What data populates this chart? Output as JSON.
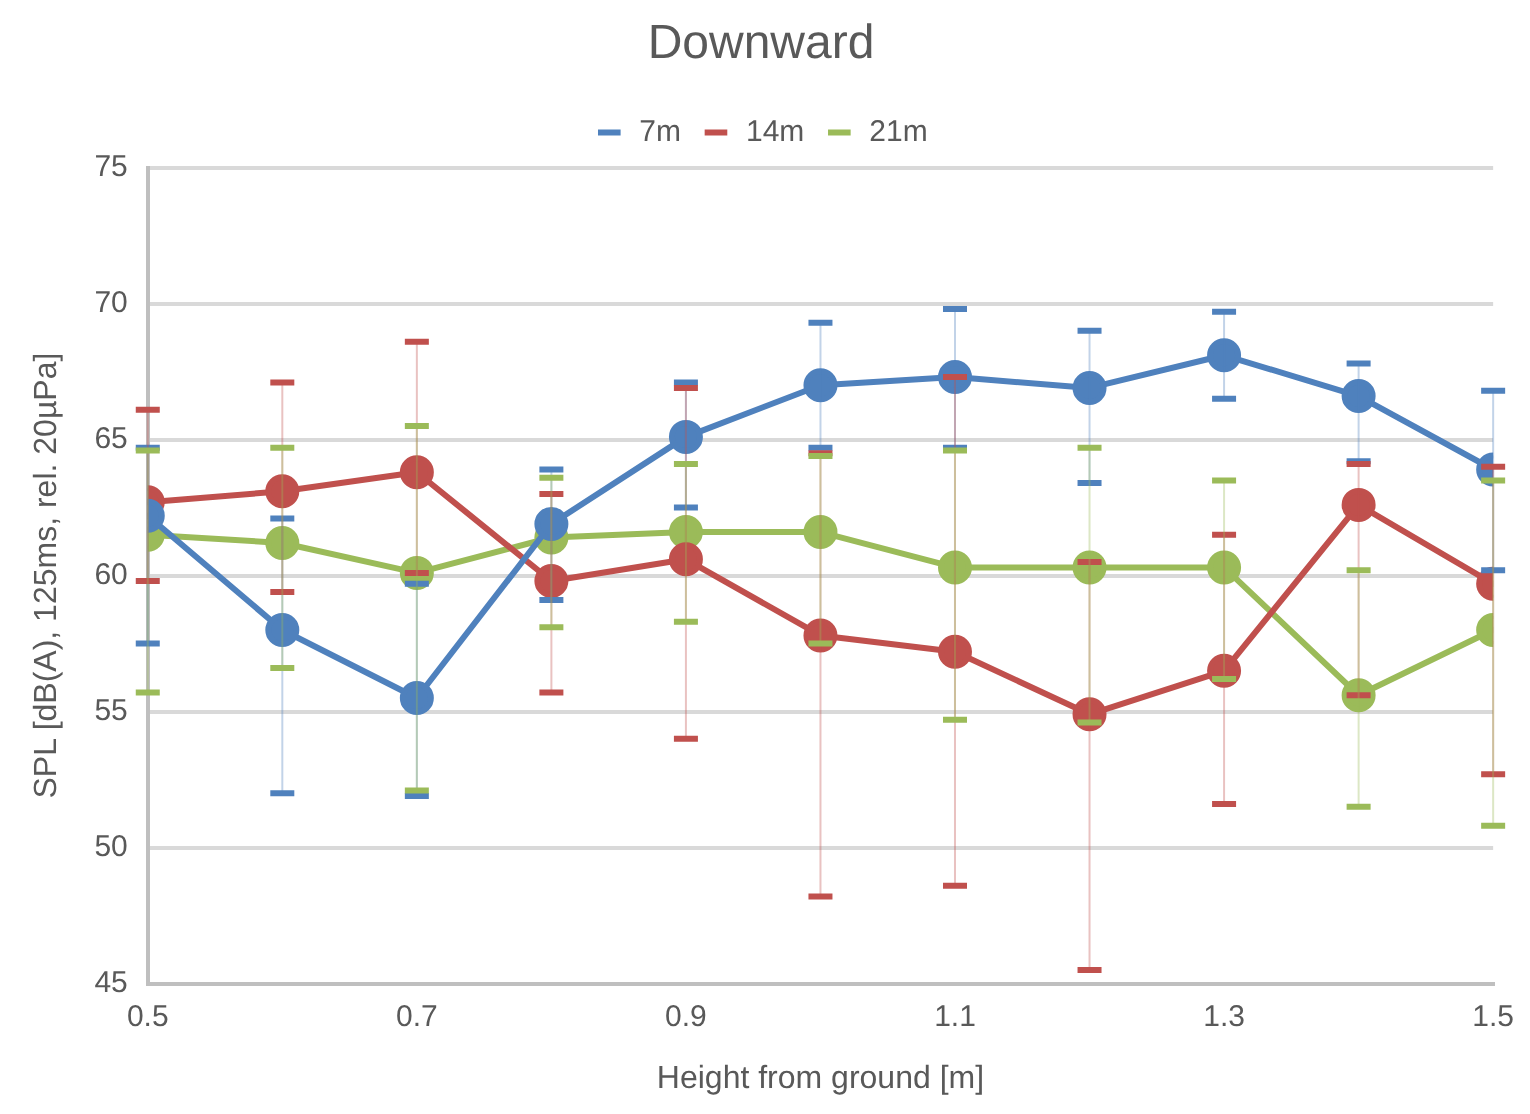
{
  "chart_data": {
    "type": "line",
    "title": "Downward",
    "xlabel": "Height from ground [m]",
    "ylabel": "SPL [dB(A), 125ms, rel. 20µPa]",
    "x": [
      0.5,
      0.6,
      0.7,
      0.8,
      0.9,
      1.0,
      1.1,
      1.2,
      1.3,
      1.4,
      1.5
    ],
    "xlim": [
      0.5,
      1.5
    ],
    "xticks": [
      0.5,
      0.7,
      0.9,
      1.1,
      1.3,
      1.5
    ],
    "ylim": [
      45,
      75
    ],
    "yticks": [
      45,
      50,
      55,
      60,
      65,
      70,
      75
    ],
    "grid": "y",
    "legend": "top",
    "marker": "circle",
    "line_style": "solid",
    "series": [
      {
        "name": "7m",
        "color": "#4f81bd",
        "values": [
          62.2,
          58.0,
          55.5,
          61.9,
          65.1,
          67.0,
          67.3,
          66.9,
          68.1,
          66.6,
          63.9
        ],
        "errors": [
          [
            57.5,
            64.7
          ],
          [
            52.0,
            62.1
          ],
          [
            51.9,
            59.7
          ],
          [
            59.1,
            63.9
          ],
          [
            62.5,
            67.1
          ],
          [
            64.7,
            69.3
          ],
          [
            64.7,
            69.8
          ],
          [
            63.4,
            69.0
          ],
          [
            66.5,
            69.7
          ],
          [
            64.2,
            67.8
          ],
          [
            60.2,
            66.8
          ]
        ]
      },
      {
        "name": "14m",
        "color": "#c0504d",
        "values": [
          62.7,
          63.1,
          63.8,
          59.8,
          60.6,
          57.8,
          57.2,
          54.9,
          56.5,
          62.6,
          59.7
        ],
        "errors": [
          [
            59.8,
            66.1
          ],
          [
            59.4,
            67.1
          ],
          [
            60.1,
            68.6
          ],
          [
            55.7,
            63.0
          ],
          [
            54.0,
            66.9
          ],
          [
            48.2,
            64.5
          ],
          [
            48.6,
            67.3
          ],
          [
            45.5,
            60.5
          ],
          [
            51.6,
            61.5
          ],
          [
            55.6,
            64.1
          ],
          [
            52.7,
            64.0
          ]
        ]
      },
      {
        "name": "21m",
        "color": "#9bbb59",
        "values": [
          61.5,
          61.2,
          60.1,
          61.4,
          61.6,
          61.6,
          60.3,
          60.3,
          60.3,
          55.6,
          58.0
        ],
        "errors": [
          [
            55.7,
            64.6
          ],
          [
            56.6,
            64.7
          ],
          [
            52.1,
            65.5
          ],
          [
            58.1,
            63.6
          ],
          [
            58.3,
            64.1
          ],
          [
            57.5,
            64.4
          ],
          [
            54.7,
            64.6
          ],
          [
            54.6,
            64.7
          ],
          [
            56.2,
            63.5
          ],
          [
            51.5,
            60.2
          ],
          [
            50.8,
            63.5
          ]
        ]
      }
    ]
  }
}
